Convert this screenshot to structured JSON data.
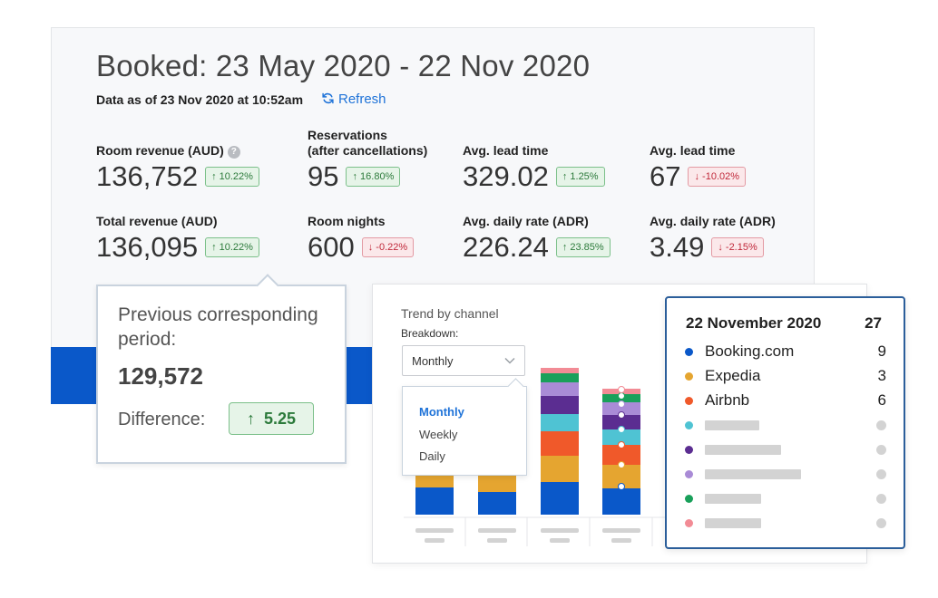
{
  "header": {
    "title": "Booked: 23 May 2020 - 22 Nov 2020",
    "as_of": "Data as of 23 Nov 2020 at 10:52am",
    "refresh_label": "Refresh"
  },
  "metrics": [
    {
      "label": "Room revenue (AUD)",
      "value": "136,752",
      "change": "10.22%",
      "direction": "up"
    },
    {
      "label": "Reservations\n(after cancellations)",
      "value": "95",
      "change": "16.80%",
      "direction": "up"
    },
    {
      "label": "Avg. lead time",
      "value": "329.02",
      "change": "1.25%",
      "direction": "up"
    },
    {
      "label": "Avg. lead time",
      "value": "67",
      "change": "-10.02%",
      "direction": "down"
    },
    {
      "label": "Total revenue (AUD)",
      "value": "136,095",
      "change": "10.22%",
      "direction": "up"
    },
    {
      "label": "Room nights",
      "value": "600",
      "change": "-0.22%",
      "direction": "down"
    },
    {
      "label": "Avg. daily rate (ADR)",
      "value": "226.24",
      "change": "23.85%",
      "direction": "up"
    },
    {
      "label": "Avg. daily rate (ADR)",
      "value": "3.49",
      "change": "-2.15%",
      "direction": "down"
    }
  ],
  "tooltip": {
    "label": "Previous corresponding period:",
    "value": "129,572",
    "difference_label": "Difference:",
    "difference_value": "5.25"
  },
  "trend": {
    "title": "Trend by channel",
    "breakdown_label": "Breakdown:",
    "selected": "Monthly",
    "options": [
      "Monthly",
      "Weekly",
      "Daily"
    ]
  },
  "legend": {
    "date": "22 November 2020",
    "total": "27",
    "channels": [
      {
        "name": "Booking.com",
        "count": "9",
        "color": "#0a58c9"
      },
      {
        "name": "Expedia",
        "count": "3",
        "color": "#e5a530"
      },
      {
        "name": "Airbnb",
        "count": "6",
        "color": "#f0592a"
      }
    ],
    "placeholders": [
      {
        "color": "#4fc3d3"
      },
      {
        "color": "#5b2d91"
      },
      {
        "color": "#a98bd6"
      },
      {
        "color": "#19a05a"
      },
      {
        "color": "#f28b95"
      }
    ]
  },
  "colors": {
    "booking": "#0a58c9",
    "expedia": "#e5a530",
    "airbnb": "#f0592a",
    "teal": "#4fc3d3",
    "purple": "#5b2d91",
    "lavender": "#a98bd6",
    "green": "#19a05a",
    "pink": "#f28b95"
  }
}
